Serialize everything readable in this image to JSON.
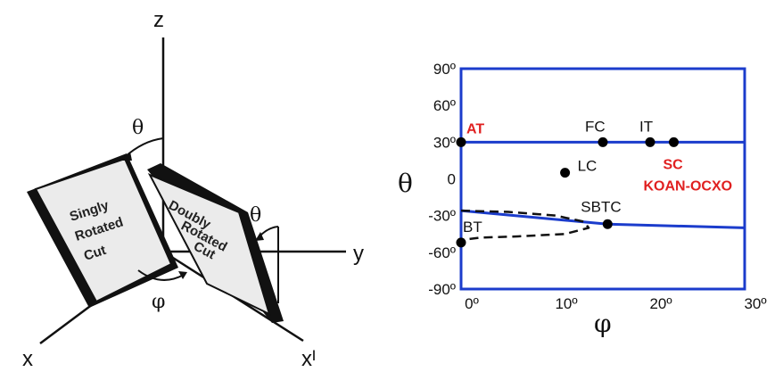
{
  "diagram": {
    "axis_z": "z",
    "axis_y": "y",
    "axis_x": "x",
    "axis_x_prime": "xᴵ",
    "theta_symbol": "θ",
    "phi_symbol": "φ",
    "singly_cut_lines": [
      "Singly",
      "Rotated",
      "Cut"
    ],
    "doubly_cut_lines": [
      "Doubly",
      "Rotated",
      "Cut"
    ]
  },
  "chart_data": {
    "type": "scatter",
    "xlabel": "φ",
    "ylabel": "θ",
    "xlim": [
      0,
      30
    ],
    "ylim": [
      -90,
      90
    ],
    "x_ticks": [
      {
        "value": 0,
        "label": "0º"
      },
      {
        "value": 10,
        "label": "10º"
      },
      {
        "value": 20,
        "label": "20º"
      },
      {
        "value": 30,
        "label": "30º"
      }
    ],
    "y_ticks": [
      {
        "value": 90,
        "label": "90º"
      },
      {
        "value": 60,
        "label": "60º"
      },
      {
        "value": 30,
        "label": "30º"
      },
      {
        "value": 0,
        "label": "0"
      },
      {
        "value": -30,
        "label": "-30º"
      },
      {
        "value": -60,
        "label": "-60º"
      },
      {
        "value": -90,
        "label": "-90º"
      }
    ],
    "lines": [
      {
        "style": "solid",
        "color": "#1b3ccc",
        "points": [
          [
            0,
            30
          ],
          [
            30,
            30
          ]
        ]
      },
      {
        "style": "solid",
        "color": "#1b3ccc",
        "points": [
          [
            0,
            -26
          ],
          [
            15.5,
            -37
          ],
          [
            30,
            -40
          ]
        ]
      }
    ],
    "dashed_loop": [
      [
        0,
        -26
      ],
      [
        5,
        -27
      ],
      [
        10,
        -30
      ],
      [
        13,
        -35
      ],
      [
        13.5,
        -40
      ],
      [
        11,
        -45
      ],
      [
        6,
        -47
      ],
      [
        2,
        -48
      ],
      [
        0,
        -50
      ]
    ],
    "points": [
      {
        "name": "AT",
        "x": 0,
        "y": 30,
        "color": "red"
      },
      {
        "name": "FC",
        "x": 15,
        "y": 30,
        "color": "black"
      },
      {
        "name": "IT",
        "x": 20,
        "y": 30,
        "color": "black"
      },
      {
        "name": "SC",
        "x": 22.5,
        "y": 30,
        "color": "red"
      },
      {
        "name": "LC",
        "x": 11,
        "y": 5,
        "color": "black"
      },
      {
        "name": "SBTC",
        "x": 15.5,
        "y": -37,
        "color": "black"
      },
      {
        "name": "BT",
        "x": 0,
        "y": -52,
        "color": "black"
      }
    ],
    "extra_label": "KOAN-OCXO",
    "colors": {
      "axes": "#1b3ccc",
      "label_red": "#e02020",
      "marker": "#000000"
    }
  }
}
